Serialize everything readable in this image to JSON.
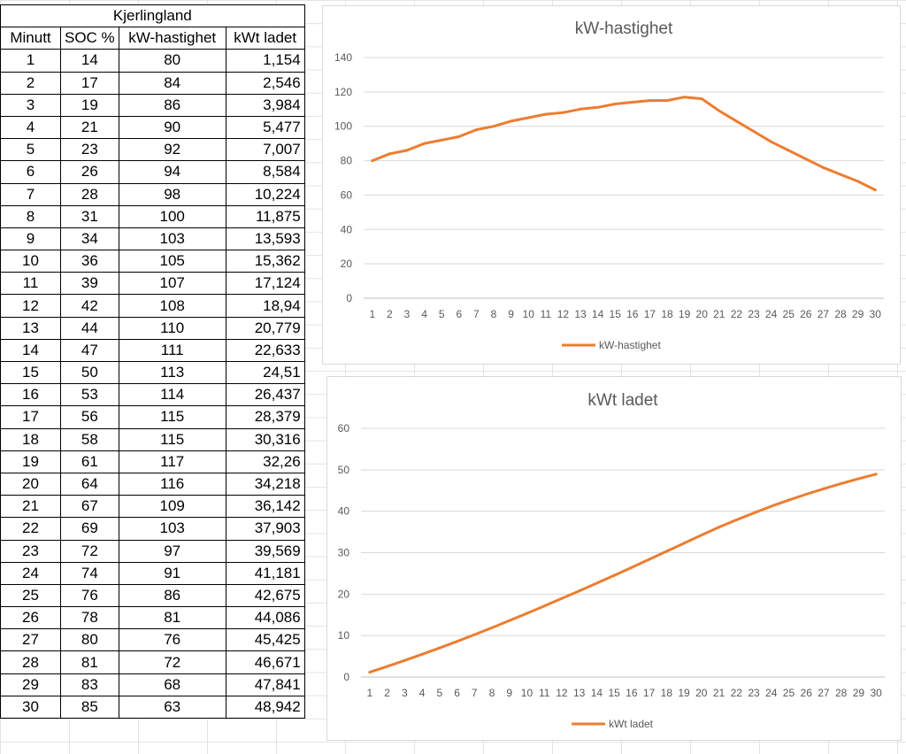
{
  "table": {
    "title": "Kjerlingland",
    "headers": [
      "Minutt",
      "SOC %",
      "kW-hastighet",
      "kWt ladet"
    ],
    "rows": [
      [
        "1",
        "14",
        "80",
        "1,154"
      ],
      [
        "2",
        "17",
        "84",
        "2,546"
      ],
      [
        "3",
        "19",
        "86",
        "3,984"
      ],
      [
        "4",
        "21",
        "90",
        "5,477"
      ],
      [
        "5",
        "23",
        "92",
        "7,007"
      ],
      [
        "6",
        "26",
        "94",
        "8,584"
      ],
      [
        "7",
        "28",
        "98",
        "10,224"
      ],
      [
        "8",
        "31",
        "100",
        "11,875"
      ],
      [
        "9",
        "34",
        "103",
        "13,593"
      ],
      [
        "10",
        "36",
        "105",
        "15,362"
      ],
      [
        "11",
        "39",
        "107",
        "17,124"
      ],
      [
        "12",
        "42",
        "108",
        "18,94"
      ],
      [
        "13",
        "44",
        "110",
        "20,779"
      ],
      [
        "14",
        "47",
        "111",
        "22,633"
      ],
      [
        "15",
        "50",
        "113",
        "24,51"
      ],
      [
        "16",
        "53",
        "114",
        "26,437"
      ],
      [
        "17",
        "56",
        "115",
        "28,379"
      ],
      [
        "18",
        "58",
        "115",
        "30,316"
      ],
      [
        "19",
        "61",
        "117",
        "32,26"
      ],
      [
        "20",
        "64",
        "116",
        "34,218"
      ],
      [
        "21",
        "67",
        "109",
        "36,142"
      ],
      [
        "22",
        "69",
        "103",
        "37,903"
      ],
      [
        "23",
        "72",
        "97",
        "39,569"
      ],
      [
        "24",
        "74",
        "91",
        "41,181"
      ],
      [
        "25",
        "76",
        "86",
        "42,675"
      ],
      [
        "26",
        "78",
        "81",
        "44,086"
      ],
      [
        "27",
        "80",
        "76",
        "45,425"
      ],
      [
        "28",
        "81",
        "72",
        "46,671"
      ],
      [
        "29",
        "83",
        "68",
        "47,841"
      ],
      [
        "30",
        "85",
        "63",
        "48,942"
      ]
    ]
  },
  "chart_data": [
    {
      "type": "line",
      "title": "kW-hastighet",
      "xlabel": "",
      "ylabel": "",
      "x": [
        1,
        2,
        3,
        4,
        5,
        6,
        7,
        8,
        9,
        10,
        11,
        12,
        13,
        14,
        15,
        16,
        17,
        18,
        19,
        20,
        21,
        22,
        23,
        24,
        25,
        26,
        27,
        28,
        29,
        30
      ],
      "series": [
        {
          "name": "kW-hastighet",
          "color": "#ED7D31",
          "values": [
            80,
            84,
            86,
            90,
            92,
            94,
            98,
            100,
            103,
            105,
            107,
            108,
            110,
            111,
            113,
            114,
            115,
            115,
            117,
            116,
            109,
            103,
            97,
            91,
            86,
            81,
            76,
            72,
            68,
            63
          ]
        }
      ],
      "ylim": [
        0,
        140
      ],
      "yticks": [
        0,
        20,
        40,
        60,
        80,
        100,
        120,
        140
      ],
      "grid": true,
      "legend": "bottom"
    },
    {
      "type": "line",
      "title": "kWt ladet",
      "xlabel": "",
      "ylabel": "",
      "x": [
        1,
        2,
        3,
        4,
        5,
        6,
        7,
        8,
        9,
        10,
        11,
        12,
        13,
        14,
        15,
        16,
        17,
        18,
        19,
        20,
        21,
        22,
        23,
        24,
        25,
        26,
        27,
        28,
        29,
        30
      ],
      "series": [
        {
          "name": "kWt ladet",
          "color": "#ED7D31",
          "values": [
            1.154,
            2.546,
            3.984,
            5.477,
            7.007,
            8.584,
            10.224,
            11.875,
            13.593,
            15.362,
            17.124,
            18.94,
            20.779,
            22.633,
            24.51,
            26.437,
            28.379,
            30.316,
            32.26,
            34.218,
            36.142,
            37.903,
            39.569,
            41.181,
            42.675,
            44.086,
            45.425,
            46.671,
            47.841,
            48.942
          ]
        }
      ],
      "ylim": [
        0,
        60
      ],
      "yticks": [
        0,
        10,
        20,
        30,
        40,
        50,
        60
      ],
      "grid": true,
      "legend": "bottom"
    }
  ]
}
